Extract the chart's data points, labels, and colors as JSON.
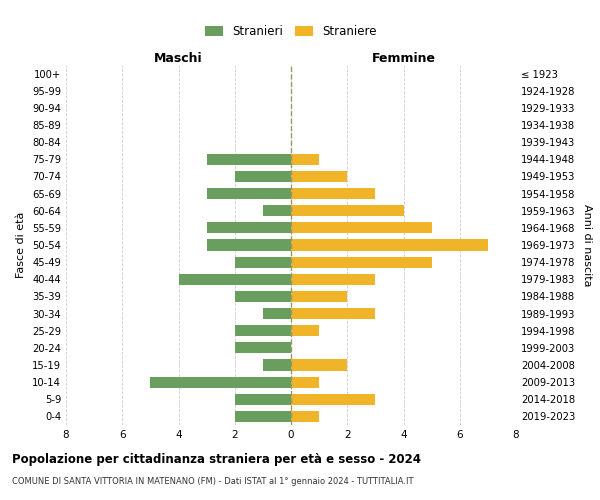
{
  "age_groups": [
    "100+",
    "95-99",
    "90-94",
    "85-89",
    "80-84",
    "75-79",
    "70-74",
    "65-69",
    "60-64",
    "55-59",
    "50-54",
    "45-49",
    "40-44",
    "35-39",
    "30-34",
    "25-29",
    "20-24",
    "15-19",
    "10-14",
    "5-9",
    "0-4"
  ],
  "birth_years": [
    "≤ 1923",
    "1924-1928",
    "1929-1933",
    "1934-1938",
    "1939-1943",
    "1944-1948",
    "1949-1953",
    "1954-1958",
    "1959-1963",
    "1964-1968",
    "1969-1973",
    "1974-1978",
    "1979-1983",
    "1984-1988",
    "1989-1993",
    "1994-1998",
    "1999-2003",
    "2004-2008",
    "2009-2013",
    "2014-2018",
    "2019-2023"
  ],
  "maschi": [
    0,
    0,
    0,
    0,
    0,
    3,
    2,
    3,
    1,
    3,
    3,
    2,
    4,
    2,
    1,
    2,
    2,
    1,
    5,
    2,
    2
  ],
  "femmine": [
    0,
    0,
    0,
    0,
    0,
    1,
    2,
    3,
    4,
    5,
    7,
    5,
    3,
    2,
    3,
    1,
    0,
    2,
    1,
    3,
    1
  ],
  "male_color": "#6a9e5e",
  "female_color": "#f0b429",
  "background_color": "#ffffff",
  "grid_color": "#cccccc",
  "title": "Popolazione per cittadinanza straniera per età e sesso - 2024",
  "subtitle": "COMUNE DI SANTA VITTORIA IN MATENANO (FM) - Dati ISTAT al 1° gennaio 2024 - TUTTITALIA.IT",
  "xlabel_left": "Maschi",
  "xlabel_right": "Femmine",
  "ylabel_left": "Fasce di età",
  "ylabel_right": "Anni di nascita",
  "legend_male": "Stranieri",
  "legend_female": "Straniere",
  "xlim": 8
}
